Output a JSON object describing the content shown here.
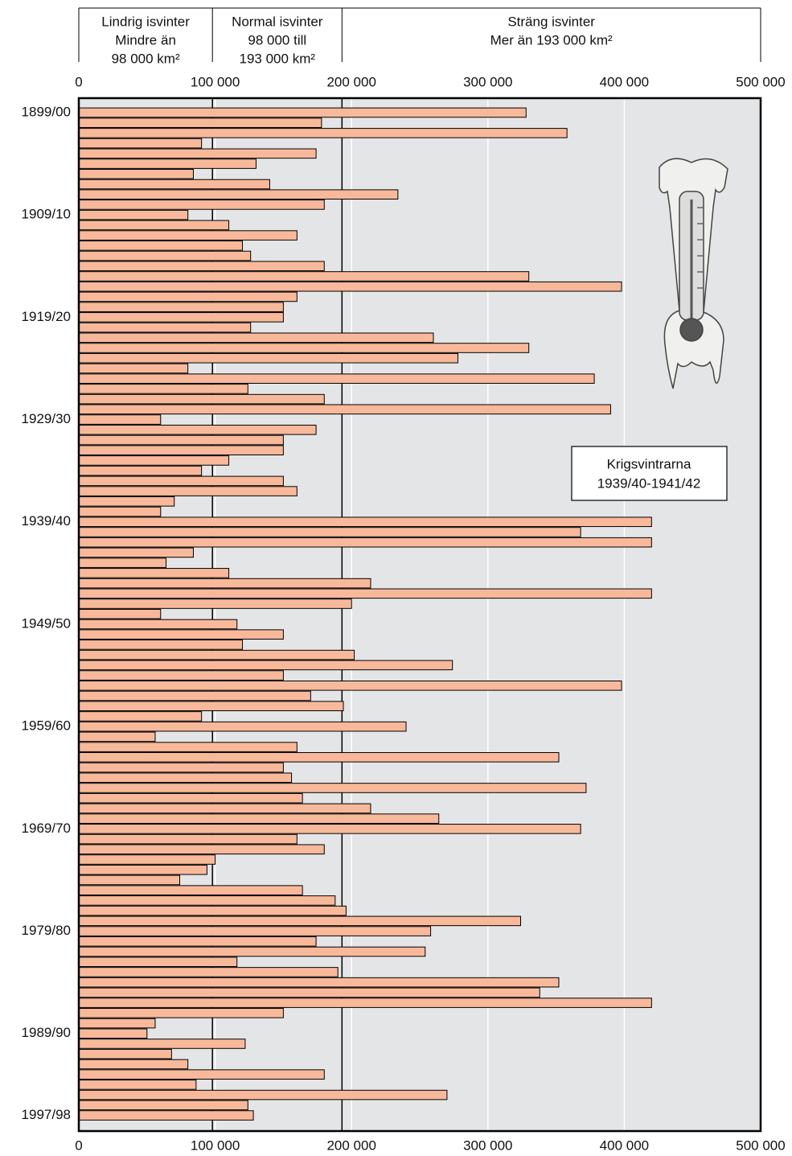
{
  "chart_data": {
    "type": "bar",
    "orientation": "horizontal",
    "categories": [
      "1899/00",
      null,
      null,
      null,
      null,
      null,
      null,
      null,
      null,
      null,
      "1909/10",
      null,
      null,
      null,
      null,
      null,
      null,
      null,
      null,
      null,
      "1919/20",
      null,
      null,
      null,
      null,
      null,
      null,
      null,
      null,
      null,
      "1929/30",
      null,
      null,
      null,
      null,
      null,
      null,
      null,
      null,
      null,
      "1939/40",
      null,
      null,
      null,
      null,
      null,
      null,
      null,
      null,
      null,
      "1949/50",
      null,
      null,
      null,
      null,
      null,
      null,
      null,
      null,
      null,
      "1959/60",
      null,
      null,
      null,
      null,
      null,
      null,
      null,
      null,
      null,
      "1969/70",
      null,
      null,
      null,
      null,
      null,
      null,
      null,
      null,
      null,
      "1979/80",
      null,
      null,
      null,
      null,
      null,
      null,
      null,
      null,
      null,
      "1989/90",
      null,
      null,
      null,
      null,
      null,
      null,
      null,
      "1997/98"
    ],
    "values": [
      328000,
      178000,
      358000,
      90000,
      174000,
      130000,
      84000,
      140000,
      234000,
      180000,
      80000,
      110000,
      160000,
      120000,
      126000,
      180000,
      330000,
      398000,
      160000,
      150000,
      150000,
      126000,
      260000,
      330000,
      278000,
      80000,
      378000,
      124000,
      180000,
      390000,
      60000,
      174000,
      150000,
      150000,
      110000,
      90000,
      150000,
      160000,
      70000,
      60000,
      420000,
      368000,
      420000,
      84000,
      64000,
      110000,
      214000,
      420000,
      200000,
      60000,
      116000,
      150000,
      120000,
      202000,
      274000,
      150000,
      398000,
      170000,
      194000,
      90000,
      240000,
      56000,
      160000,
      352000,
      150000,
      156000,
      372000,
      164000,
      214000,
      264000,
      368000,
      160000,
      180000,
      100000,
      94000,
      74000,
      164000,
      188000,
      196000,
      324000,
      258000,
      174000,
      254000,
      116000,
      190000,
      352000,
      338000,
      420000,
      150000,
      56000,
      50000,
      122000,
      68000,
      80000,
      180000,
      86000,
      270000,
      124000,
      128000
    ],
    "color": "#f8b99b",
    "ylim": [
      0,
      500000
    ],
    "yticks": [
      0,
      {
        "value": 100000,
        "label": "100 000"
      },
      {
        "value": 200000,
        "label": "200 000"
      },
      {
        "value": 300000,
        "label": "300 000"
      },
      {
        "value": 400000,
        "label": "400 000"
      },
      {
        "value": 500000,
        "label": "500 000"
      }
    ],
    "grid": true,
    "thresholds": [
      98000,
      193000
    ],
    "zones": [
      {
        "lines": [
          "Lindrig isvinter",
          "Mindre än",
          "98 000 km²"
        ]
      },
      {
        "lines": [
          "Normal isvinter",
          "98 000 till",
          "193 000 km²"
        ]
      },
      {
        "lines": [
          "Sträng isvinter",
          "Mer än 193 000 km²"
        ]
      }
    ],
    "annotation": [
      "Krigsvintrarna",
      "1939/40-1941/42"
    ]
  }
}
